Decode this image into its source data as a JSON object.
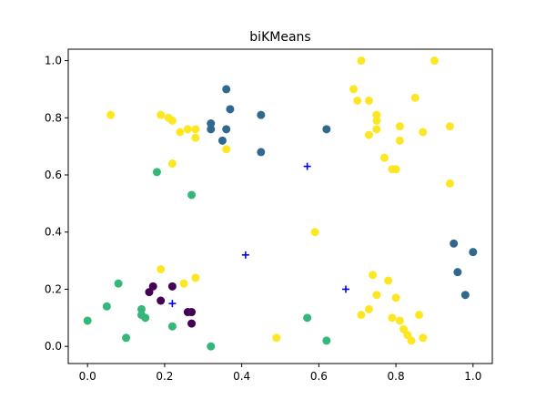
{
  "chart_data": {
    "type": "scatter",
    "title": "biKMeans",
    "xlabel": "",
    "ylabel": "",
    "xlim": [
      -0.05,
      1.05
    ],
    "ylim": [
      -0.06,
      1.04
    ],
    "grid": false,
    "x_ticks": [
      "0.0",
      "0.2",
      "0.4",
      "0.6",
      "0.8",
      "1.0"
    ],
    "y_ticks": [
      "0.0",
      "0.2",
      "0.4",
      "0.6",
      "0.8",
      "1.0"
    ],
    "colors": {
      "purple": "#440154",
      "blue": "#31688e",
      "green": "#35b779",
      "yellow": "#fde725",
      "centroid": "#0000ff"
    },
    "series": [
      {
        "color_key": "purple",
        "points": [
          [
            0.16,
            0.19
          ],
          [
            0.17,
            0.21
          ],
          [
            0.22,
            0.21
          ],
          [
            0.19,
            0.16
          ],
          [
            0.26,
            0.12
          ],
          [
            0.27,
            0.12
          ],
          [
            0.27,
            0.08
          ]
        ]
      },
      {
        "color_key": "blue",
        "points": [
          [
            0.36,
            0.9
          ],
          [
            0.37,
            0.83
          ],
          [
            0.32,
            0.78
          ],
          [
            0.32,
            0.76
          ],
          [
            0.36,
            0.76
          ],
          [
            0.35,
            0.72
          ],
          [
            0.45,
            0.81
          ],
          [
            0.45,
            0.68
          ],
          [
            0.62,
            0.76
          ],
          [
            0.95,
            0.36
          ],
          [
            0.96,
            0.26
          ],
          [
            0.98,
            0.18
          ],
          [
            1.0,
            0.33
          ]
        ]
      },
      {
        "color_key": "green",
        "points": [
          [
            0.0,
            0.09
          ],
          [
            0.05,
            0.14
          ],
          [
            0.08,
            0.22
          ],
          [
            0.1,
            0.03
          ],
          [
            0.14,
            0.13
          ],
          [
            0.14,
            0.11
          ],
          [
            0.15,
            0.1
          ],
          [
            0.18,
            0.61
          ],
          [
            0.22,
            0.07
          ],
          [
            0.27,
            0.53
          ],
          [
            0.32,
            0.0
          ],
          [
            0.57,
            0.1
          ],
          [
            0.62,
            0.02
          ]
        ]
      },
      {
        "color_key": "yellow",
        "points": [
          [
            0.06,
            0.81
          ],
          [
            0.19,
            0.81
          ],
          [
            0.21,
            0.8
          ],
          [
            0.22,
            0.79
          ],
          [
            0.24,
            0.75
          ],
          [
            0.26,
            0.76
          ],
          [
            0.28,
            0.76
          ],
          [
            0.28,
            0.73
          ],
          [
            0.22,
            0.64
          ],
          [
            0.36,
            0.69
          ],
          [
            0.19,
            0.27
          ],
          [
            0.25,
            0.22
          ],
          [
            0.28,
            0.24
          ],
          [
            0.49,
            0.03
          ],
          [
            0.59,
            0.4
          ],
          [
            0.69,
            0.9
          ],
          [
            0.7,
            0.86
          ],
          [
            0.71,
            1.0
          ],
          [
            0.73,
            0.86
          ],
          [
            0.73,
            0.74
          ],
          [
            0.75,
            0.81
          ],
          [
            0.75,
            0.79
          ],
          [
            0.75,
            0.76
          ],
          [
            0.77,
            0.66
          ],
          [
            0.79,
            0.62
          ],
          [
            0.8,
            0.62
          ],
          [
            0.81,
            0.77
          ],
          [
            0.81,
            0.72
          ],
          [
            0.85,
            0.87
          ],
          [
            0.87,
            0.75
          ],
          [
            0.9,
            1.0
          ],
          [
            0.94,
            0.77
          ],
          [
            0.94,
            0.57
          ],
          [
            0.71,
            0.11
          ],
          [
            0.73,
            0.13
          ],
          [
            0.74,
            0.25
          ],
          [
            0.75,
            0.18
          ],
          [
            0.78,
            0.23
          ],
          [
            0.79,
            0.1
          ],
          [
            0.8,
            0.17
          ],
          [
            0.81,
            0.09
          ],
          [
            0.82,
            0.06
          ],
          [
            0.83,
            0.04
          ],
          [
            0.84,
            0.02
          ],
          [
            0.86,
            0.11
          ],
          [
            0.87,
            0.03
          ]
        ]
      }
    ],
    "centroids": [
      [
        0.57,
        0.63
      ],
      [
        0.41,
        0.32
      ],
      [
        0.22,
        0.15
      ],
      [
        0.67,
        0.2
      ]
    ]
  }
}
